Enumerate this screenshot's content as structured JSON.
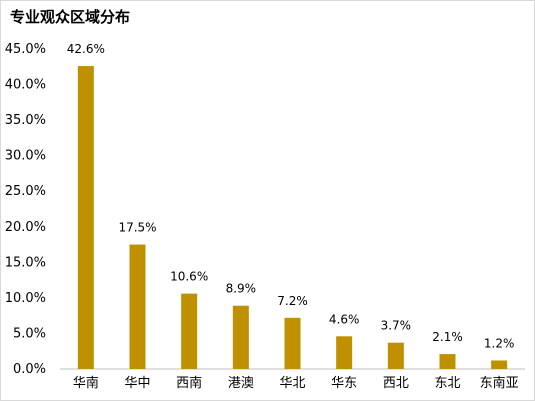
{
  "chart_data": {
    "type": "bar",
    "title": "专业观众区域分布",
    "categories": [
      "华南",
      "华中",
      "西南",
      "港澳",
      "华北",
      "华东",
      "西北",
      "东北",
      "东南亚"
    ],
    "values": [
      42.6,
      17.5,
      10.6,
      8.9,
      7.2,
      4.6,
      3.7,
      2.1,
      1.2
    ],
    "data_labels": [
      "42.6%",
      "17.5%",
      "10.6%",
      "8.9%",
      "7.2%",
      "4.6%",
      "3.7%",
      "2.1%",
      "1.2%"
    ],
    "yticks": [
      "0.0%",
      "5.0%",
      "10.0%",
      "15.0%",
      "20.0%",
      "25.0%",
      "30.0%",
      "35.0%",
      "40.0%",
      "45.0%"
    ],
    "ylim": [
      0,
      45
    ],
    "unit": "%",
    "grid": false,
    "bar_color": "#BF9000",
    "xlabel": "",
    "ylabel": ""
  }
}
